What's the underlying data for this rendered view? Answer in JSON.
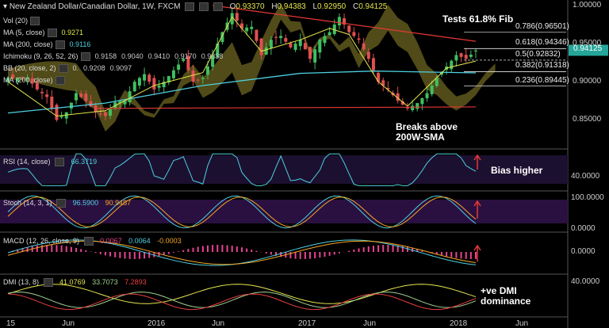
{
  "header": {
    "title": "New Zealand Dollar/Canadian Dollar, 1W, FXCM",
    "o_label": "O",
    "o_value": "0.93370",
    "h_label": "H",
    "h_value": "0.94383",
    "l_label": "L",
    "l_value": "0.92950",
    "c_label": "C",
    "c_value": "0.94125"
  },
  "indicators": [
    {
      "label": "Vol (20)",
      "values": [],
      "color": "#dddddd"
    },
    {
      "label": "MA (5, close)",
      "values": [
        "0.9271"
      ],
      "color": "#e6e64d"
    },
    {
      "label": "MA (200, close)",
      "values": [
        "0.9116"
      ],
      "color": "#4dd0e1"
    },
    {
      "label": "Ichimoku (9, 26, 52, 26)",
      "values": [
        "0.9158",
        "0.9040",
        "0.9410",
        "0.9170",
        "0.9338"
      ],
      "color": "#cccccc"
    },
    {
      "label": "BB (20, close, 2)",
      "values": [
        "0.",
        "0.9208",
        "0.9097"
      ],
      "color": "#cccccc"
    },
    {
      "label": "MA (200, close)",
      "values": [],
      "color": "#cccccc"
    }
  ],
  "price_tag": {
    "value": "0.94125",
    "color": "#26a69a"
  },
  "annotations": {
    "fib_title": "Tests 61.8% Fib",
    "breakout_line1": "Breaks above",
    "breakout_line2": "200W-SMA",
    "rsi_note": "Bias higher",
    "dmi_note_line1": "+ve DMI",
    "dmi_note_line2": "dominance"
  },
  "panels": {
    "rsi": {
      "label": "RSI (14, close)",
      "values": [
        "66.3719"
      ],
      "axis": [
        "40.0000"
      ]
    },
    "stoch": {
      "label": "Stoch (14, 3, 1)",
      "values": [
        "96.5900",
        "90.9487"
      ],
      "axis": [
        "100.0000",
        "0.0000"
      ]
    },
    "macd": {
      "label": "MACD (12, 26, close, 9)",
      "values": [
        "0.0067",
        "0.0064",
        "-0.0003"
      ],
      "axis": [
        "0.0000"
      ]
    },
    "dmi": {
      "label": "DMI (13, 8)",
      "values": [
        "41.0769",
        "33.7073",
        "7.2893"
      ],
      "axis": [
        "40.0000"
      ]
    }
  },
  "chart_data": {
    "type": "candlestick",
    "title": "New Zealand Dollar/Canadian Dollar, 1W, FXCM",
    "x_tick_labels": [
      "15",
      "Jun",
      "2016",
      "Jun",
      "2017",
      "Jun",
      "2018",
      "Jun"
    ],
    "y_tick_labels": [
      "1.00000",
      "0.95000",
      "0.90000",
      "0.85000"
    ],
    "ylim": [
      0.815,
      1.003
    ],
    "fib_levels": [
      {
        "label": "0.786(0.96501)",
        "value": 0.96501
      },
      {
        "label": "0.618(0.94346)",
        "value": 0.94346
      },
      {
        "label": "0.5(0.92832)",
        "value": 0.92832
      },
      {
        "label": "0.382(0.91318)",
        "value": 0.91318
      },
      {
        "label": "0.236(0.89445)",
        "value": 0.89445
      }
    ],
    "close_path": [
      [
        0,
        0.905
      ],
      [
        4,
        0.905
      ],
      [
        6,
        0.89
      ],
      [
        8,
        0.88
      ],
      [
        10,
        0.85
      ],
      [
        12,
        0.86
      ],
      [
        14,
        0.885
      ],
      [
        16,
        0.875
      ],
      [
        18,
        0.86
      ],
      [
        20,
        0.855
      ],
      [
        22,
        0.873
      ],
      [
        24,
        0.875
      ],
      [
        26,
        0.9
      ],
      [
        28,
        0.91
      ],
      [
        30,
        0.89
      ],
      [
        32,
        0.9
      ],
      [
        34,
        0.915
      ],
      [
        36,
        0.93
      ],
      [
        38,
        0.9
      ],
      [
        40,
        0.905
      ],
      [
        42,
        0.935
      ],
      [
        44,
        0.965
      ],
      [
        46,
        0.99
      ],
      [
        48,
        0.97
      ],
      [
        50,
        0.972
      ],
      [
        52,
        0.935
      ],
      [
        54,
        0.955
      ],
      [
        56,
        0.96
      ],
      [
        58,
        0.945
      ],
      [
        60,
        0.955
      ],
      [
        62,
        0.93
      ],
      [
        64,
        0.955
      ],
      [
        66,
        0.965
      ],
      [
        68,
        0.985
      ],
      [
        70,
        0.965
      ],
      [
        72,
        0.955
      ],
      [
        74,
        0.93
      ],
      [
        76,
        0.9
      ],
      [
        78,
        0.89
      ],
      [
        80,
        0.875
      ],
      [
        82,
        0.865
      ],
      [
        84,
        0.872
      ],
      [
        86,
        0.885
      ],
      [
        88,
        0.905
      ],
      [
        90,
        0.92
      ],
      [
        92,
        0.935
      ],
      [
        94,
        0.93
      ],
      [
        96,
        0.941
      ]
    ],
    "sma200": [
      [
        0,
        0.859
      ],
      [
        20,
        0.872
      ],
      [
        40,
        0.895
      ],
      [
        60,
        0.911
      ],
      [
        75,
        0.914
      ],
      [
        96,
        0.9116
      ]
    ],
    "ma5_path": [
      [
        0,
        0.9
      ],
      [
        10,
        0.855
      ],
      [
        20,
        0.862
      ],
      [
        30,
        0.895
      ],
      [
        40,
        0.912
      ],
      [
        46,
        0.985
      ],
      [
        52,
        0.94
      ],
      [
        60,
        0.955
      ],
      [
        66,
        0.97
      ],
      [
        70,
        0.962
      ],
      [
        76,
        0.9
      ],
      [
        82,
        0.868
      ],
      [
        90,
        0.918
      ],
      [
        96,
        0.927
      ]
    ],
    "resistance_line": [
      [
        42,
        1.0
      ],
      [
        96,
        0.953
      ]
    ],
    "support_line": [
      [
        18,
        0.865
      ],
      [
        96,
        0.867
      ]
    ]
  }
}
